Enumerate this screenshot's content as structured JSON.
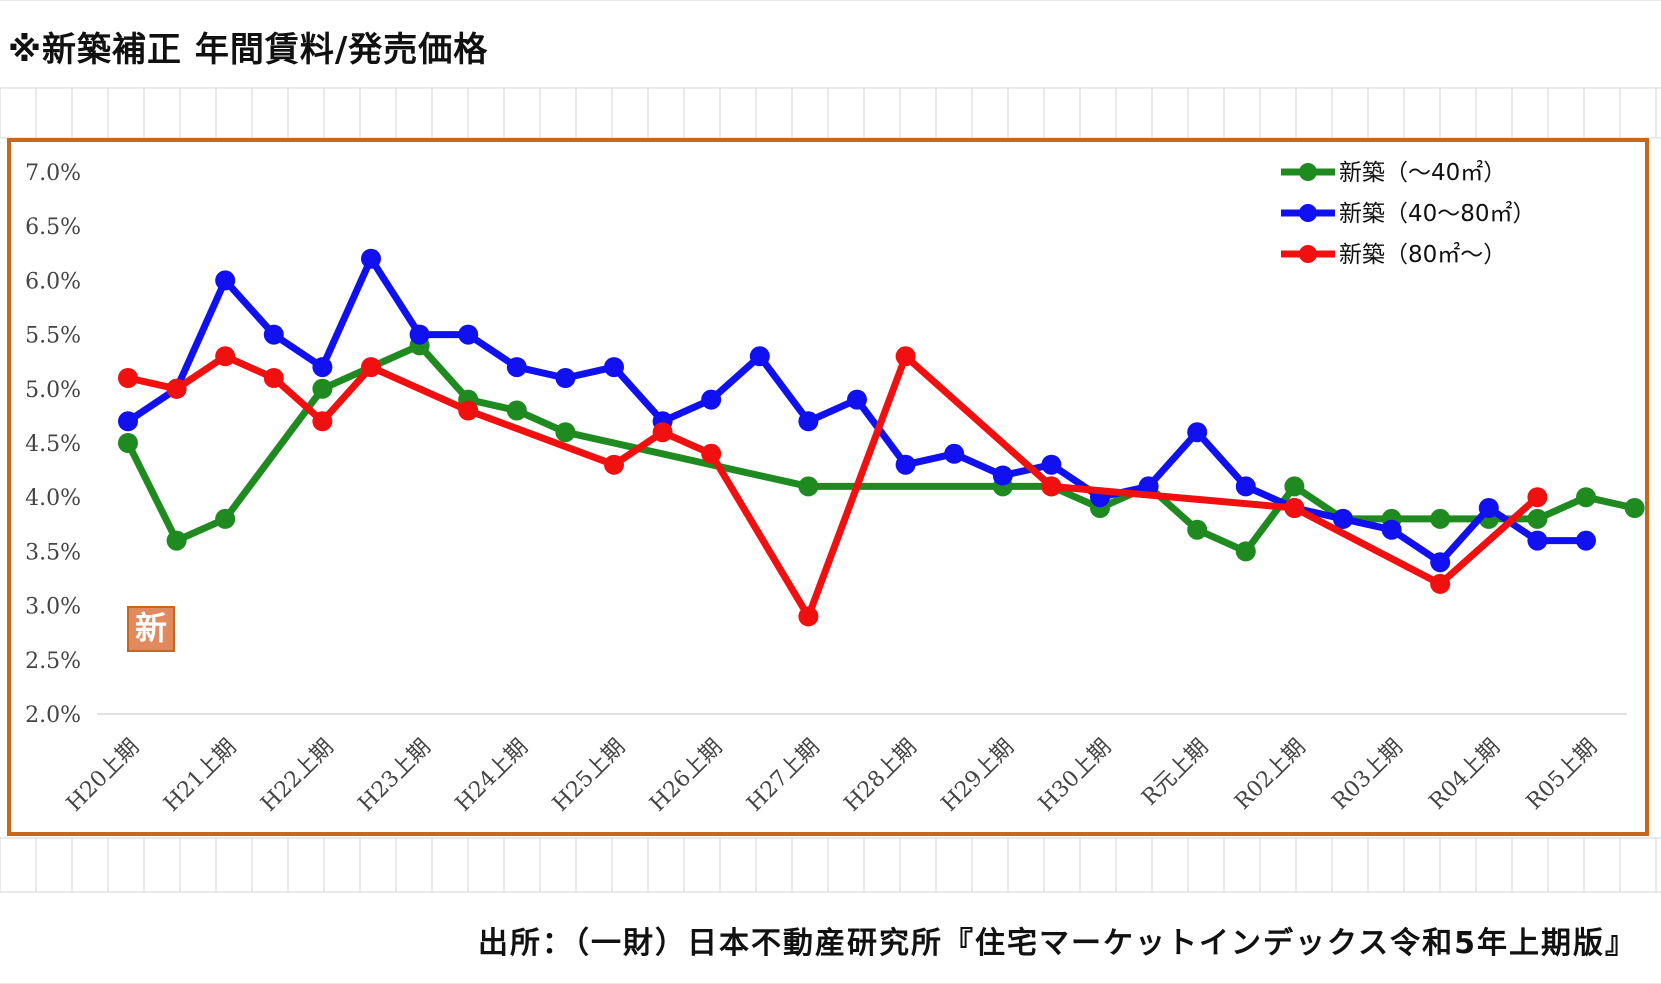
{
  "title": "※新築補正 年間賃料/発売価格",
  "source_note": "出所：（一財）日本不動産研究所『住宅マーケットインデックス令和5年上期版』",
  "stamp_label": "新",
  "colors": {
    "frame": "#c8661a",
    "green": "#1f8a1f",
    "blue": "#1010f0",
    "red": "#f01010",
    "grid": "#d8d8d8"
  },
  "chart_data": {
    "type": "line",
    "title": "",
    "xlabel": "",
    "ylabel": "",
    "ylim": [
      0.02,
      0.07
    ],
    "yticks": [
      "7.0%",
      "6.5%",
      "6.0%",
      "5.5%",
      "5.0%",
      "4.5%",
      "4.0%",
      "3.5%",
      "3.0%",
      "2.5%",
      "2.0%"
    ],
    "x_labels": [
      "H20上期",
      "H21上期",
      "H22上期",
      "H23上期",
      "H24上期",
      "H25上期",
      "H26上期",
      "H27上期",
      "H28上期",
      "H29上期",
      "H30上期",
      "R元上期",
      "R02上期",
      "R03上期",
      "R04上期",
      "R05上期"
    ],
    "legend_position": "top-right",
    "series": [
      {
        "name": "新築（～40㎡）",
        "color": "#1f8a1f",
        "points": [
          [
            0,
            0.045
          ],
          [
            0.5,
            0.036
          ],
          [
            1,
            0.038
          ],
          [
            2,
            0.05
          ],
          [
            3,
            0.054
          ],
          [
            3.5,
            0.049
          ],
          [
            4,
            0.048
          ],
          [
            4.5,
            0.046
          ],
          [
            7,
            0.041
          ],
          [
            9,
            0.041
          ],
          [
            9.5,
            0.041
          ],
          [
            10,
            0.039
          ],
          [
            10.5,
            0.041
          ],
          [
            11,
            0.037
          ],
          [
            11.5,
            0.035
          ],
          [
            12,
            0.041
          ],
          [
            12.5,
            0.038
          ],
          [
            13,
            0.038
          ],
          [
            13.5,
            0.038
          ],
          [
            14,
            0.038
          ],
          [
            14.5,
            0.038
          ],
          [
            15,
            0.04
          ],
          [
            15.5,
            0.039
          ]
        ]
      },
      {
        "name": "新築（40～80㎡）",
        "color": "#1010f0",
        "points": [
          [
            0,
            0.047
          ],
          [
            0.5,
            0.05
          ],
          [
            1,
            0.06
          ],
          [
            1.5,
            0.055
          ],
          [
            2,
            0.052
          ],
          [
            2.5,
            0.062
          ],
          [
            3,
            0.055
          ],
          [
            3.5,
            0.055
          ],
          [
            4,
            0.052
          ],
          [
            4.5,
            0.051
          ],
          [
            5,
            0.052
          ],
          [
            5.5,
            0.047
          ],
          [
            6,
            0.049
          ],
          [
            6.5,
            0.053
          ],
          [
            7,
            0.047
          ],
          [
            7.5,
            0.049
          ],
          [
            8,
            0.043
          ],
          [
            8.5,
            0.044
          ],
          [
            9,
            0.042
          ],
          [
            9.5,
            0.043
          ],
          [
            10,
            0.04
          ],
          [
            10.5,
            0.041
          ],
          [
            11,
            0.046
          ],
          [
            11.5,
            0.041
          ],
          [
            12,
            0.039
          ],
          [
            12.5,
            0.038
          ],
          [
            13,
            0.037
          ],
          [
            13.5,
            0.034
          ],
          [
            14,
            0.039
          ],
          [
            14.5,
            0.036
          ],
          [
            15,
            0.036
          ]
        ]
      },
      {
        "name": "新築（80㎡～）",
        "color": "#f01010",
        "points": [
          [
            0,
            0.051
          ],
          [
            0.5,
            0.05
          ],
          [
            1,
            0.053
          ],
          [
            1.5,
            0.051
          ],
          [
            2,
            0.047
          ],
          [
            2.5,
            0.052
          ],
          [
            3.5,
            0.048
          ],
          [
            5,
            0.043
          ],
          [
            5.5,
            0.046
          ],
          [
            6,
            0.044
          ],
          [
            7,
            0.029
          ],
          [
            8,
            0.053
          ],
          [
            9.5,
            0.041
          ],
          [
            12,
            0.039
          ],
          [
            13.5,
            0.032
          ],
          [
            14.5,
            0.04
          ]
        ]
      }
    ]
  }
}
